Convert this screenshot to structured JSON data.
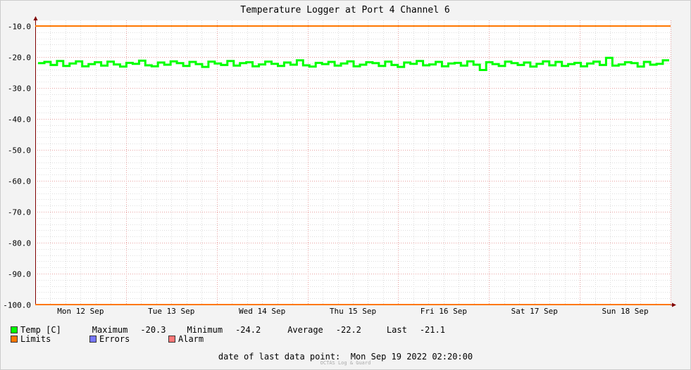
{
  "chart_data": {
    "type": "line",
    "title": "Temperature Logger at Port 4 Channel 6",
    "ylim": [
      -100,
      -10
    ],
    "y_ticks": [
      -10.0,
      -20.0,
      -30.0,
      -40.0,
      -50.0,
      -60.0,
      -70.0,
      -80.0,
      -90.0,
      -100.0
    ],
    "y_tick_labels": [
      "-10.0",
      "-20.0",
      "-30.0",
      "-40.0",
      "-50.0",
      "-60.0",
      "-70.0",
      "-80.0",
      "-90.0",
      "-100.0"
    ],
    "x_tick_labels": [
      "Mon 12 Sep",
      "Tue 13 Sep",
      "Wed 14 Sep",
      "Thu 15 Sep",
      "Fri 16 Sep",
      "Sat 17 Sep",
      "Sun 18 Sep"
    ],
    "grid": true,
    "series": [
      {
        "name": "Temp [C]",
        "color": "#00ff00",
        "values": [
          -22.0,
          -21.6,
          -22.6,
          -21.3,
          -22.9,
          -22.1,
          -21.4,
          -23.0,
          -22.3,
          -21.7,
          -22.8,
          -21.5,
          -22.4,
          -23.1,
          -21.9,
          -22.2,
          -21.2,
          -22.7,
          -23.0,
          -21.8,
          -22.5,
          -21.4,
          -22.0,
          -22.9,
          -21.6,
          -22.3,
          -23.2,
          -21.5,
          -22.1,
          -22.6,
          -21.3,
          -22.8,
          -22.0,
          -21.7,
          -23.0,
          -22.4,
          -21.5,
          -22.2,
          -22.9,
          -21.8,
          -22.5,
          -21.1,
          -22.7,
          -23.1,
          -21.9,
          -22.3,
          -21.6,
          -22.8,
          -22.1,
          -21.4,
          -23.0,
          -22.5,
          -21.7,
          -22.0,
          -22.9,
          -21.5,
          -22.6,
          -23.2,
          -21.8,
          -22.2,
          -21.3,
          -22.7,
          -22.4,
          -21.6,
          -23.0,
          -22.1,
          -21.9,
          -22.8,
          -21.4,
          -22.5,
          -24.2,
          -21.7,
          -22.3,
          -22.9,
          -21.5,
          -22.0,
          -22.6,
          -21.8,
          -23.1,
          -22.2,
          -21.4,
          -22.7,
          -21.6,
          -22.9,
          -22.3,
          -21.9,
          -23.0,
          -22.1,
          -21.5,
          -22.6,
          -20.3,
          -22.8,
          -22.4,
          -21.7,
          -22.0,
          -23.1,
          -21.6,
          -22.5,
          -22.2,
          -21.1
        ]
      },
      {
        "name": "Limits",
        "color": "#ff7700",
        "values": [
          -10.0,
          -100.0
        ]
      }
    ],
    "legend": [
      {
        "name": "Temp [C]",
        "color": "#00ff00"
      },
      {
        "name": "Limits",
        "color": "#ff7700"
      },
      {
        "name": "Errors",
        "color": "#7777ff"
      },
      {
        "name": "Alarm",
        "color": "#ff7777"
      }
    ],
    "stats": {
      "maximum_label": "Maximum",
      "maximum": "-20.3",
      "minimum_label": "Minimum",
      "minimum": "-24.2",
      "average_label": "Average",
      "average": "-22.2",
      "last_label": "Last",
      "last": "-21.1"
    }
  },
  "footer": {
    "last_data_label": "date of last data point:",
    "last_data_value": "Mon Sep 19 2022 02:20:00",
    "credit": "OCTAS Log & Guard"
  }
}
